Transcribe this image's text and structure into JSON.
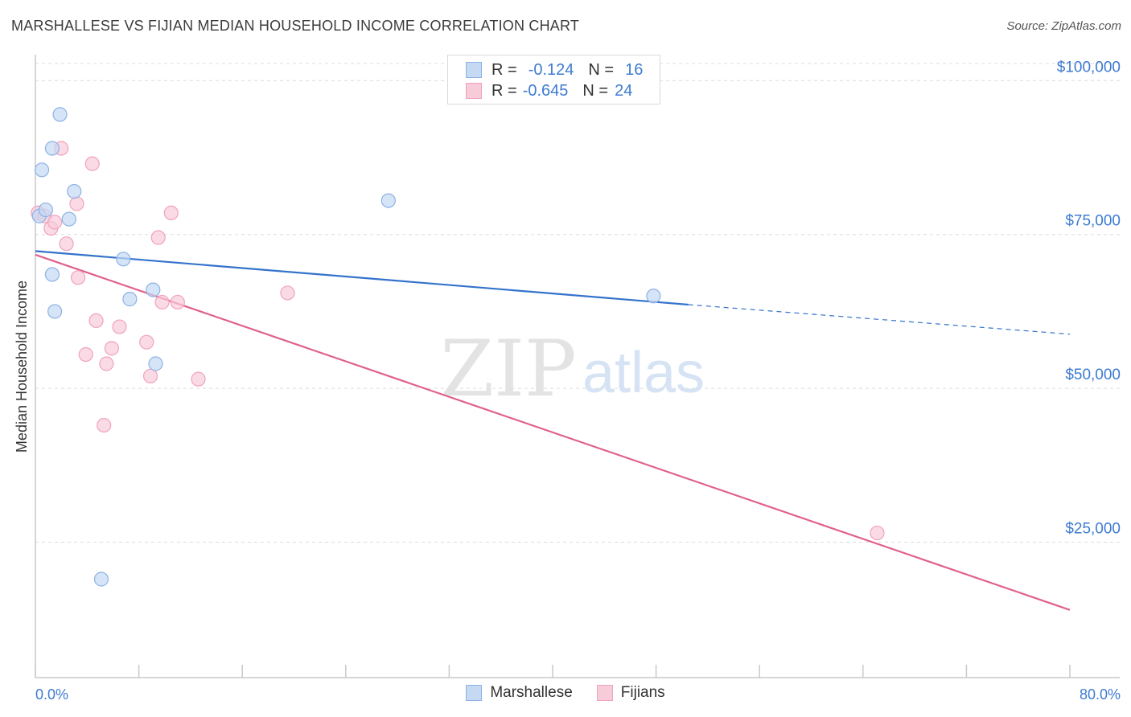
{
  "title": "MARSHALLESE VS FIJIAN MEDIAN HOUSEHOLD INCOME CORRELATION CHART",
  "source": "Source: ZipAtlas.com",
  "watermark": {
    "zip": "ZIP",
    "atlas": "atlas"
  },
  "legend": {
    "rows": [
      {
        "r_label": "R =",
        "r_value": "-0.124",
        "n_label": "N =",
        "n_value": "16"
      },
      {
        "r_label": "R =",
        "r_value": "-0.645",
        "n_label": "N =",
        "n_value": "24"
      }
    ]
  },
  "colors": {
    "marshallese_fill": "#c5d9f3",
    "marshallese_stroke": "#8cb2e4",
    "marshallese_line": "#3473cc",
    "fijians_fill": "#f8cbd9",
    "fijians_stroke": "#f0a3bd",
    "fijians_line": "#e0608e",
    "axis_label": "#3e7bd1",
    "grid": "#dcdcdc"
  },
  "chart_data": {
    "type": "scatter",
    "title": "MARSHALLESE VS FIJIAN MEDIAN HOUSEHOLD INCOME CORRELATION CHART",
    "xlabel": "",
    "ylabel": "Median Household Income",
    "xlim": [
      0,
      80
    ],
    "ylim": [
      3000,
      105000
    ],
    "x_tick_labels": [
      "0.0%",
      "80.0%"
    ],
    "y_ticks": [
      {
        "value": 25000,
        "label": "$25,000"
      },
      {
        "value": 50000,
        "label": "$50,000"
      },
      {
        "value": 75000,
        "label": "$75,000"
      },
      {
        "value": 100000,
        "label": "$100,000"
      }
    ],
    "series": [
      {
        "name": "Marshallese",
        "points": [
          [
            0.3,
            78000
          ],
          [
            0.5,
            85500
          ],
          [
            0.8,
            79000
          ],
          [
            1.3,
            68500
          ],
          [
            1.3,
            89000
          ],
          [
            1.5,
            62500
          ],
          [
            1.9,
            94500
          ],
          [
            2.6,
            77500
          ],
          [
            3.0,
            82000
          ],
          [
            5.1,
            19000
          ],
          [
            6.8,
            71000
          ],
          [
            7.3,
            64500
          ],
          [
            9.1,
            66000
          ],
          [
            9.3,
            54000
          ],
          [
            27.3,
            80500
          ],
          [
            47.8,
            65000
          ]
        ],
        "trend": {
          "x0": 0,
          "y0": 72300,
          "x1": 50.5,
          "y1": 63600,
          "x_dash_end": 80,
          "y_dash_end": 58800
        }
      },
      {
        "name": "Fijians",
        "points": [
          [
            0.2,
            78500
          ],
          [
            0.7,
            78000
          ],
          [
            1.2,
            76000
          ],
          [
            1.5,
            77000
          ],
          [
            2.0,
            89000
          ],
          [
            2.4,
            73500
          ],
          [
            3.3,
            68000
          ],
          [
            3.9,
            55500
          ],
          [
            4.4,
            86500
          ],
          [
            4.7,
            61000
          ],
          [
            5.3,
            44000
          ],
          [
            5.5,
            54000
          ],
          [
            5.9,
            56500
          ],
          [
            6.5,
            60000
          ],
          [
            8.6,
            57500
          ],
          [
            8.9,
            52000
          ],
          [
            9.5,
            74500
          ],
          [
            9.8,
            64000
          ],
          [
            10.5,
            78500
          ],
          [
            11.0,
            64000
          ],
          [
            12.6,
            51500
          ],
          [
            19.5,
            65500
          ],
          [
            65.1,
            26500
          ],
          [
            3.2,
            80000
          ]
        ],
        "trend": {
          "x0": 0,
          "y0": 71700,
          "x1": 80,
          "y1": 14000
        }
      }
    ]
  }
}
